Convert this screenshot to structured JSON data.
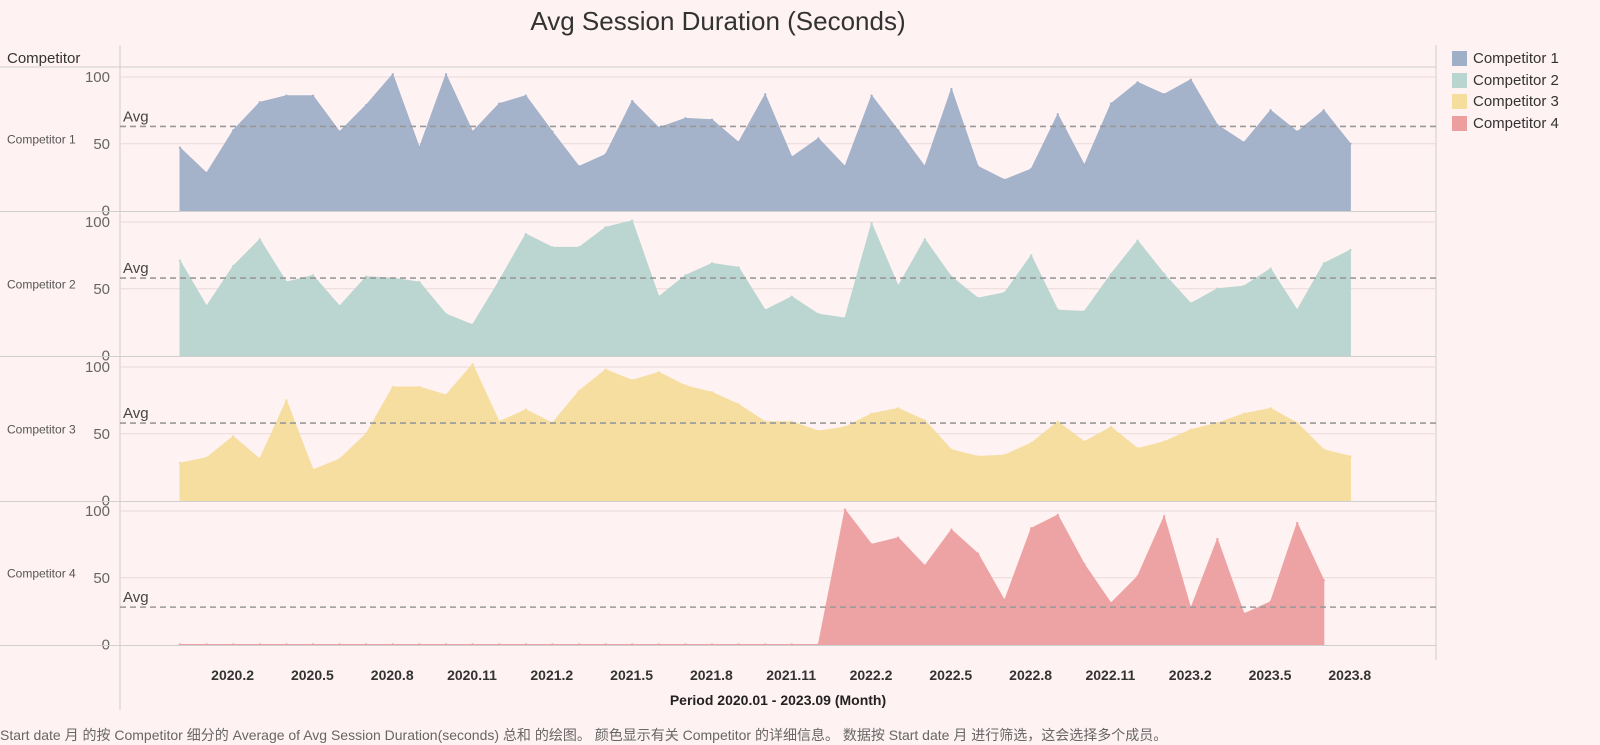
{
  "chart_data": {
    "type": "area",
    "title": "Avg Session Duration (Seconds)",
    "row_header": "Competitor",
    "xlabel": "Period 2020.01 - 2023.09 (Month)",
    "ylabel": "",
    "ylim": [
      0,
      100
    ],
    "yticks": [
      0,
      50,
      100
    ],
    "x": [
      "2020.1",
      "2020.2",
      "2020.3",
      "2020.4",
      "2020.5",
      "2020.6",
      "2020.7",
      "2020.8",
      "2020.9",
      "2020.10",
      "2020.11",
      "2020.12",
      "2021.1",
      "2021.2",
      "2021.3",
      "2021.4",
      "2021.5",
      "2021.6",
      "2021.7",
      "2021.8",
      "2021.9",
      "2021.10",
      "2021.11",
      "2021.12",
      "2022.1",
      "2022.2",
      "2022.3",
      "2022.4",
      "2022.5",
      "2022.6",
      "2022.7",
      "2022.8",
      "2022.9",
      "2022.10",
      "2022.11",
      "2022.12",
      "2023.1",
      "2023.2",
      "2023.3",
      "2023.4",
      "2023.5",
      "2023.6",
      "2023.7",
      "2023.8",
      "2023.9"
    ],
    "xtick_labels": [
      "2020.2",
      "2020.5",
      "2020.8",
      "2020.11",
      "2021.2",
      "2021.5",
      "2021.8",
      "2021.11",
      "2022.2",
      "2022.5",
      "2022.8",
      "2022.11",
      "2023.2",
      "2023.5",
      "2023.8"
    ],
    "avg_label": "Avg",
    "legend_position": "top-right",
    "grid": true,
    "series": [
      {
        "name": "Competitor 1",
        "color": "#a0afc8",
        "avg": 63,
        "values": [
          47,
          28,
          60,
          81,
          86,
          86,
          59,
          79,
          102,
          47,
          102,
          59,
          80,
          86,
          59,
          33,
          42,
          82,
          62,
          69,
          68,
          51,
          87,
          40,
          54,
          33,
          86,
          60,
          33,
          91,
          33,
          23,
          31,
          72,
          34,
          80,
          96,
          87,
          98,
          64,
          51,
          75,
          59,
          75,
          50
        ]
      },
      {
        "name": "Competitor 2",
        "color": "#b8d5d0",
        "avg": 58,
        "values": [
          71,
          37,
          67,
          87,
          55,
          60,
          37,
          59,
          58,
          55,
          31,
          23,
          56,
          91,
          81,
          81,
          96,
          101,
          44,
          60,
          69,
          66,
          34,
          44,
          31,
          28,
          99,
          52,
          87,
          59,
          43,
          47,
          75,
          34,
          33,
          61,
          86,
          61,
          39,
          50,
          52,
          65,
          34,
          69,
          79
        ]
      },
      {
        "name": "Competitor 3",
        "color": "#f5dd9c",
        "avg": 58,
        "values": [
          28,
          32,
          48,
          31,
          75,
          23,
          31,
          50,
          85,
          85,
          79,
          102,
          59,
          68,
          58,
          82,
          98,
          90,
          96,
          86,
          81,
          72,
          59,
          59,
          52,
          55,
          65,
          69,
          60,
          38,
          33,
          34,
          43,
          59,
          44,
          55,
          39,
          44,
          53,
          58,
          65,
          69,
          58,
          38,
          33
        ]
      },
      {
        "name": "Competitor 4",
        "color": "#ed9fa0",
        "avg": 28,
        "values": [
          0,
          0,
          0,
          0,
          0,
          0,
          0,
          0,
          0,
          0,
          0,
          0,
          0,
          0,
          0,
          0,
          0,
          0,
          0,
          0,
          0,
          0,
          0,
          0,
          0,
          101,
          75,
          80,
          59,
          86,
          68,
          33,
          87,
          97,
          60,
          31,
          51,
          96,
          27,
          79,
          23,
          32,
          91,
          48,
          null
        ]
      }
    ]
  },
  "caption": "Start date 月 的按 Competitor 细分的 Average of Avg Session Duration(seconds) 总和 的绘图。 颜色显示有关 Competitor 的详细信息。 数据按 Start date 月 进行筛选，这会选择多个成员。"
}
